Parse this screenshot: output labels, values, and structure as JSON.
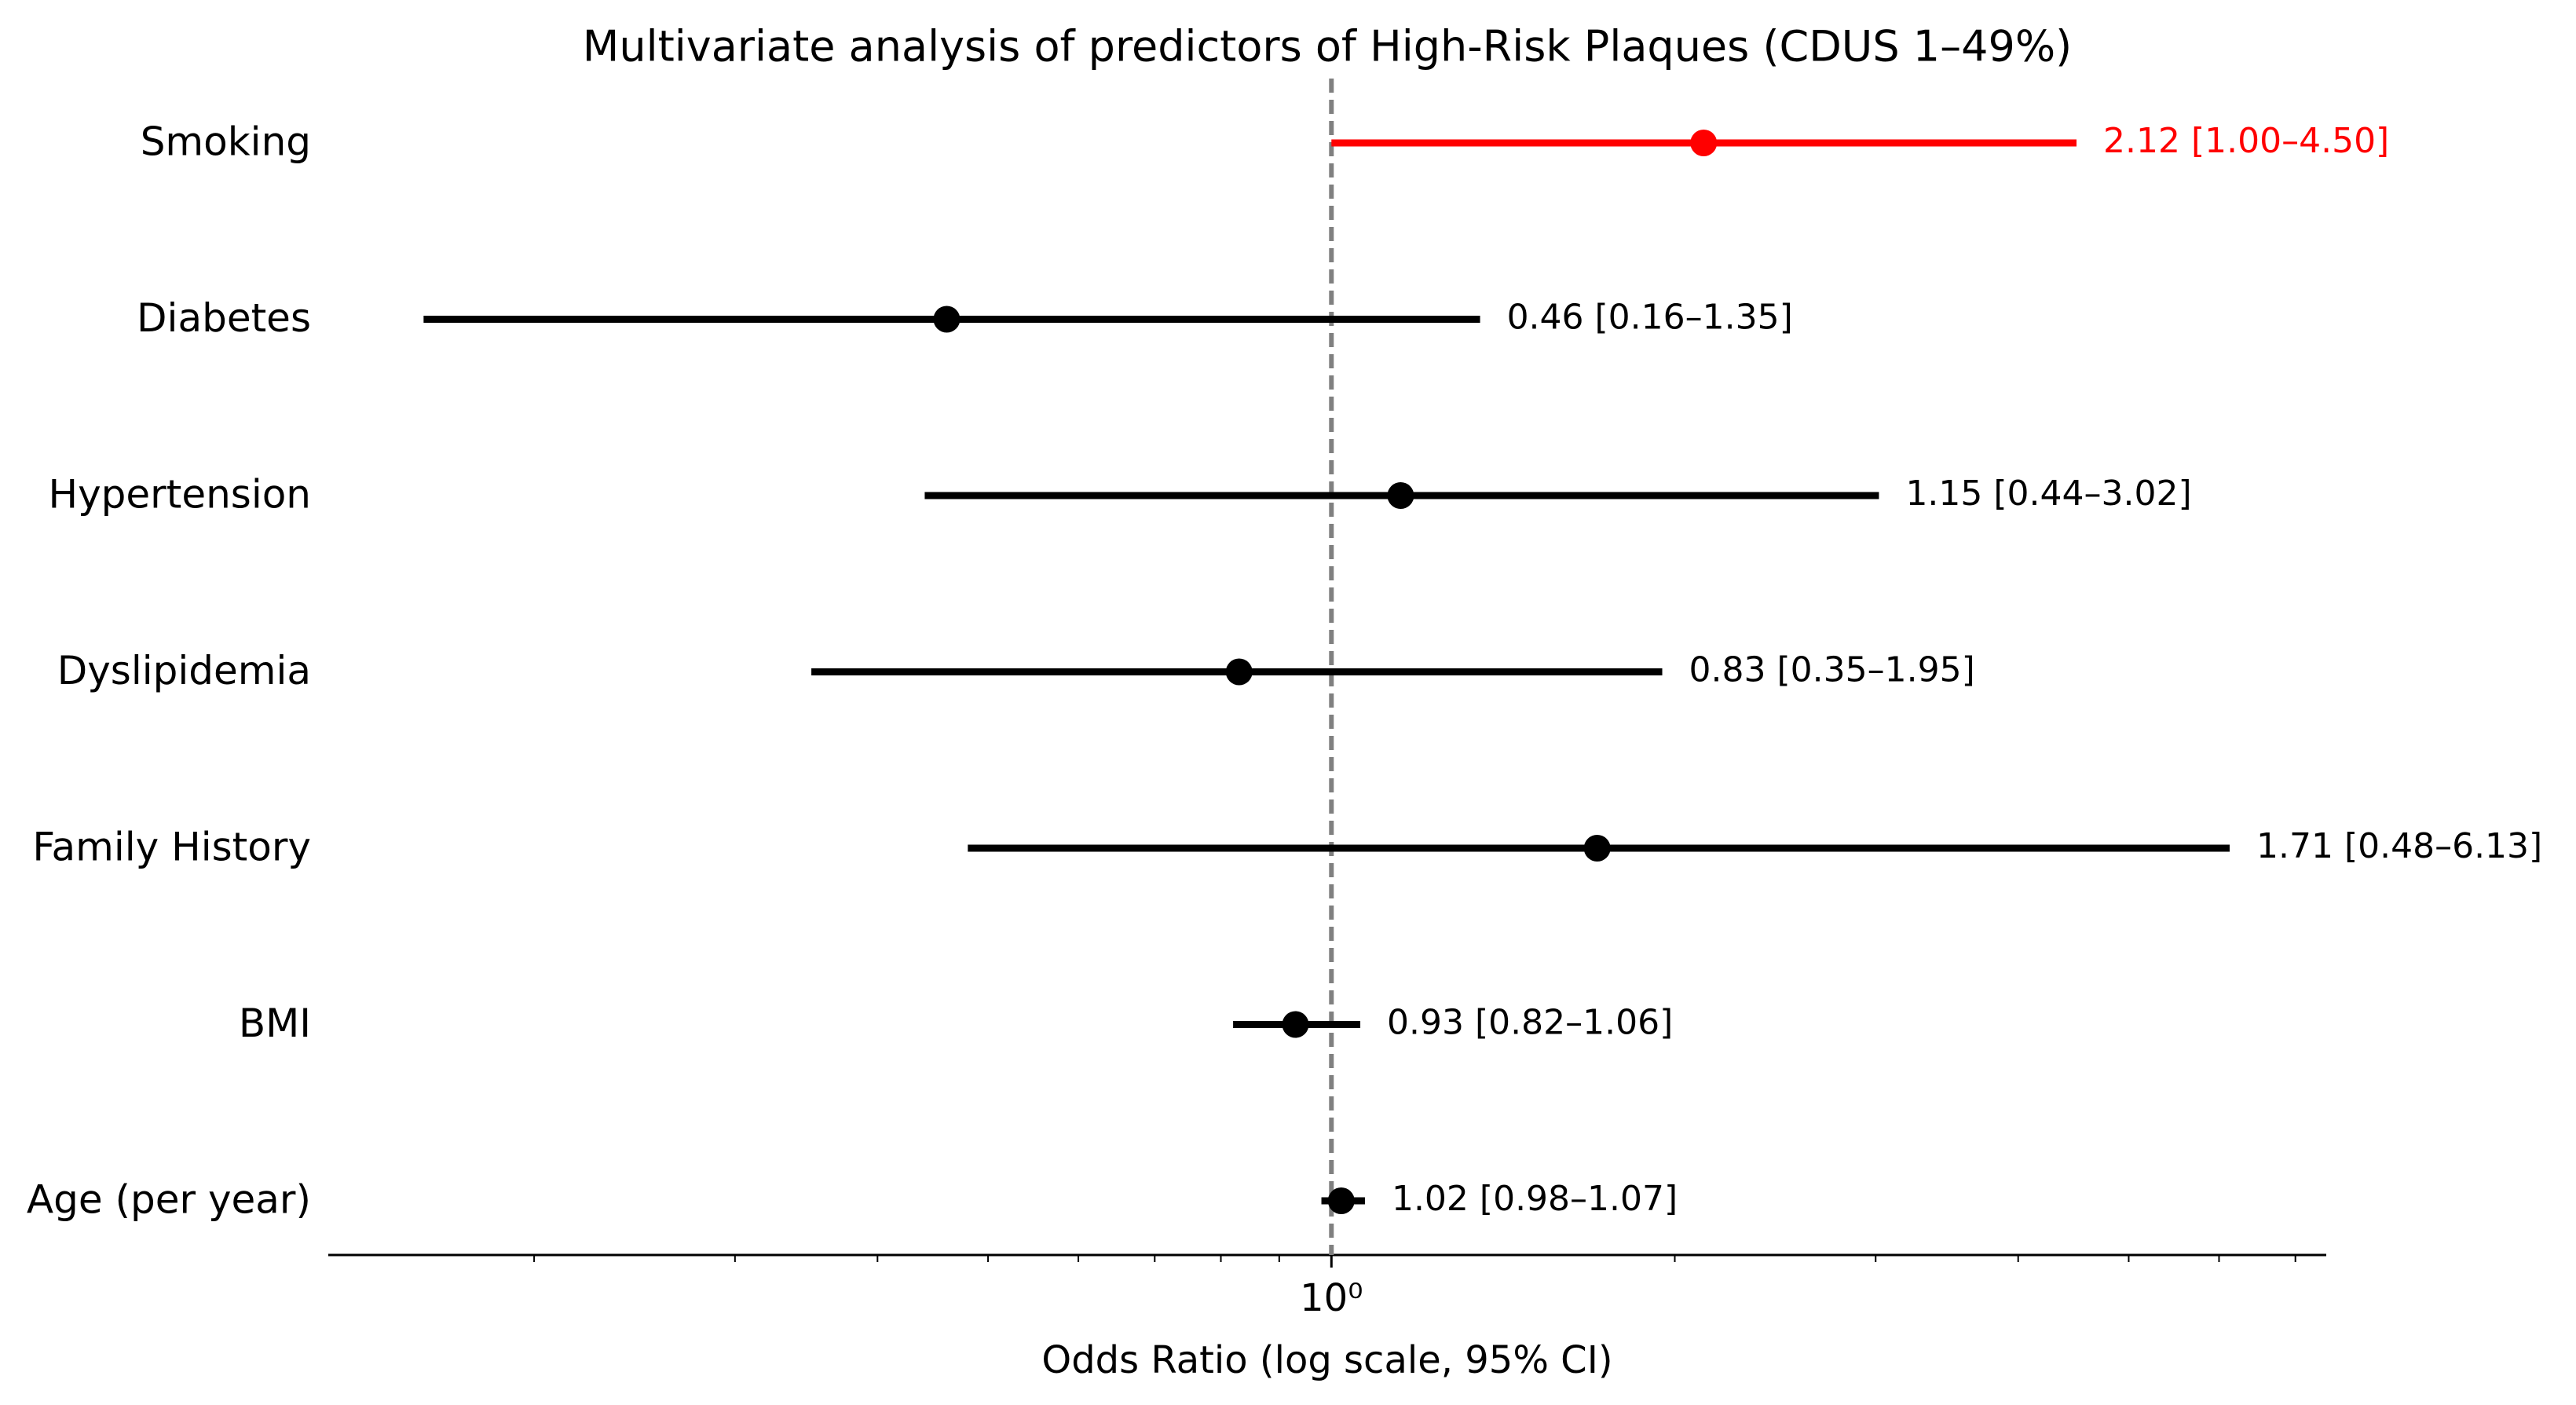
{
  "chart_data": {
    "type": "forest",
    "title": "Multivariate analysis of predictors of High-Risk Plaques (CDUS 1–49%)",
    "x_label": "Odds Ratio (log scale, 95% CI)",
    "categories": [
      "Smoking",
      "Diabetes",
      "Hypertension",
      "Dyslipidemia",
      "Family History",
      "BMI",
      "Age (per year)"
    ],
    "values": [
      2.12,
      0.46,
      1.15,
      0.83,
      1.71,
      0.93,
      1.02
    ],
    "lower": [
      1.0,
      0.16,
      0.44,
      0.35,
      0.48,
      0.82,
      0.98
    ],
    "upper": [
      4.5,
      1.35,
      3.02,
      1.95,
      6.13,
      1.06,
      1.07
    ],
    "value_labels": [
      "2.12 [1.00–4.50]",
      "0.46 [0.16–1.35]",
      "1.15 [0.44–3.02]",
      "0.83 [0.35–1.95]",
      "1.71 [0.48–6.13]",
      "0.93 [0.82–1.06]",
      "1.02 [0.98–1.07]"
    ],
    "colors": [
      "#ff0000",
      "#000000",
      "#000000",
      "#000000",
      "#000000",
      "#000000",
      "#000000"
    ],
    "xscale": "log",
    "xlim": [
      0.132,
      7.45
    ],
    "xticks": [
      {
        "value": 1,
        "label": "10⁰"
      }
    ],
    "xminorticks": [
      0.2,
      0.3,
      0.4,
      0.5,
      0.6,
      0.7,
      0.8,
      0.9,
      2,
      3,
      4,
      5,
      6,
      7
    ],
    "reference_line": 1,
    "reference_color": "#808080"
  }
}
